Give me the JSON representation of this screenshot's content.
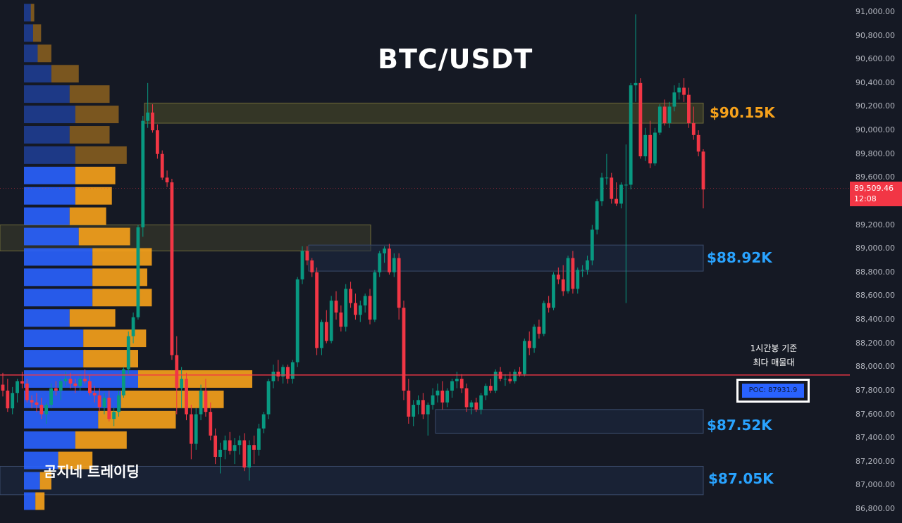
{
  "title": "BTC/USDT",
  "brand": "곰지네 트레이딩",
  "colors": {
    "bull": "#089981",
    "bear": "#f23645",
    "background": "#151924",
    "poc_line": "#f23645",
    "vp_buy": "#2962ff",
    "vp_sell": "#f7a21b"
  },
  "price_tag": {
    "price": "89,509.46",
    "countdown": "12:08"
  },
  "levels": [
    {
      "label": "$90.15K",
      "color": "#f7a21b"
    },
    {
      "label": "$88.92K",
      "color": "#29a3ff"
    },
    {
      "label": "$87.52K",
      "color": "#29a3ff"
    },
    {
      "label": "$87.05K",
      "color": "#29a3ff"
    }
  ],
  "poc": {
    "note_line1": "1시간봉 기준",
    "note_line2": "최다 매물대",
    "label": "POC: 87931.9"
  },
  "chart_data": {
    "type": "candlestick",
    "timeframe": "1h",
    "y_ticks": [
      "91,000.00",
      "90,800.00",
      "90,600.00",
      "90,400.00",
      "90,200.00",
      "90,000.00",
      "89,800.00",
      "89,600.00",
      "89,200.00",
      "89,000.00",
      "88,800.00",
      "88,600.00",
      "88,400.00",
      "88,200.00",
      "88,000.00",
      "87,800.00",
      "87,600.00",
      "87,400.00",
      "87,200.00",
      "87,000.00",
      "86,800.00"
    ],
    "ylim": [
      86750,
      91030
    ],
    "last_price": 89509.46,
    "poc": 87931.9,
    "key_levels": [
      90150,
      88920,
      87520,
      87050
    ],
    "zones": [
      {
        "top": 90230,
        "bottom": 90060,
        "type": "resistance"
      },
      {
        "top": 89200,
        "bottom": 88980,
        "type": "resistance"
      },
      {
        "top": 89030,
        "bottom": 88810,
        "type": "support"
      },
      {
        "top": 87640,
        "bottom": 87440,
        "type": "support"
      },
      {
        "top": 87160,
        "bottom": 86920,
        "type": "support"
      }
    ],
    "candles": [
      [
        87850,
        87950,
        87750,
        87800
      ],
      [
        87800,
        87900,
        87620,
        87650
      ],
      [
        87650,
        87830,
        87600,
        87780
      ],
      [
        87780,
        87900,
        87700,
        87880
      ],
      [
        87880,
        87960,
        87820,
        87860
      ],
      [
        87860,
        87900,
        87700,
        87720
      ],
      [
        87720,
        87760,
        87650,
        87700
      ],
      [
        87700,
        87780,
        87620,
        87680
      ],
      [
        87680,
        87740,
        87560,
        87600
      ],
      [
        87600,
        87700,
        87520,
        87680
      ],
      [
        87680,
        87860,
        87650,
        87820
      ],
      [
        87820,
        87880,
        87760,
        87800
      ],
      [
        87800,
        87900,
        87720,
        87880
      ],
      [
        87880,
        87960,
        87840,
        87900
      ],
      [
        87900,
        87950,
        87820,
        87860
      ],
      [
        87860,
        87900,
        87780,
        87840
      ],
      [
        87840,
        87930,
        87800,
        87900
      ],
      [
        87900,
        87980,
        87860,
        87880
      ],
      [
        87880,
        87930,
        87760,
        87780
      ],
      [
        87780,
        87840,
        87700,
        87760
      ],
      [
        87760,
        87820,
        87620,
        87660
      ],
      [
        87660,
        87780,
        87600,
        87740
      ],
      [
        87740,
        87800,
        87540,
        87560
      ],
      [
        87560,
        87660,
        87500,
        87620
      ],
      [
        87620,
        87800,
        87580,
        87760
      ],
      [
        87760,
        88000,
        87740,
        87980
      ],
      [
        87980,
        88300,
        87940,
        88260
      ],
      [
        88260,
        88460,
        88200,
        88420
      ],
      [
        88420,
        89200,
        88400,
        89180
      ],
      [
        89180,
        90120,
        89100,
        90080
      ],
      [
        90080,
        90400,
        90020,
        90150
      ],
      [
        90150,
        90220,
        89980,
        90000
      ],
      [
        90000,
        90050,
        89760,
        89800
      ],
      [
        89800,
        89830,
        89580,
        89600
      ],
      [
        89600,
        89660,
        89520,
        89560
      ],
      [
        89560,
        89590,
        88060,
        88100
      ],
      [
        88100,
        88260,
        87600,
        87820
      ],
      [
        87820,
        88000,
        87650,
        87900
      ],
      [
        87900,
        87950,
        87550,
        87600
      ],
      [
        87600,
        87680,
        87220,
        87350
      ],
      [
        87350,
        87650,
        87300,
        87600
      ],
      [
        87600,
        87850,
        87550,
        87800
      ],
      [
        87800,
        87900,
        87580,
        87620
      ],
      [
        87620,
        87700,
        87380,
        87420
      ],
      [
        87420,
        87480,
        87180,
        87240
      ],
      [
        87240,
        87360,
        87100,
        87300
      ],
      [
        87300,
        87420,
        87220,
        87380
      ],
      [
        87380,
        87450,
        87260,
        87290
      ],
      [
        87290,
        87400,
        87180,
        87340
      ],
      [
        87340,
        87420,
        87260,
        87380
      ],
      [
        87380,
        87440,
        87120,
        87150
      ],
      [
        87150,
        87380,
        87040,
        87340
      ],
      [
        87340,
        87420,
        87180,
        87300
      ],
      [
        87300,
        87520,
        87250,
        87480
      ],
      [
        87480,
        87620,
        87440,
        87600
      ],
      [
        87600,
        87900,
        87560,
        87880
      ],
      [
        87880,
        88020,
        87820,
        87960
      ],
      [
        87960,
        88060,
        87880,
        87920
      ],
      [
        87920,
        88020,
        87860,
        88000
      ],
      [
        88000,
        88020,
        87860,
        87900
      ],
      [
        87900,
        88060,
        87860,
        88040
      ],
      [
        88040,
        88760,
        88000,
        88740
      ],
      [
        88740,
        89020,
        88700,
        88980
      ],
      [
        88980,
        89020,
        88860,
        88900
      ],
      [
        88900,
        88920,
        88760,
        88800
      ],
      [
        88800,
        88840,
        88100,
        88160
      ],
      [
        88160,
        88400,
        88100,
        88380
      ],
      [
        88380,
        88480,
        88200,
        88220
      ],
      [
        88220,
        88600,
        88200,
        88560
      ],
      [
        88560,
        88640,
        88400,
        88460
      ],
      [
        88460,
        88520,
        88300,
        88340
      ],
      [
        88340,
        88700,
        88300,
        88660
      ],
      [
        88660,
        88720,
        88500,
        88540
      ],
      [
        88540,
        88620,
        88400,
        88440
      ],
      [
        88440,
        88560,
        88380,
        88520
      ],
      [
        88520,
        88620,
        88460,
        88600
      ],
      [
        88600,
        88660,
        88360,
        88400
      ],
      [
        88400,
        88820,
        88380,
        88800
      ],
      [
        88800,
        88980,
        88760,
        88960
      ],
      [
        88960,
        89020,
        88880,
        89000
      ],
      [
        89000,
        89040,
        88780,
        88800
      ],
      [
        88800,
        88960,
        88760,
        88920
      ],
      [
        88920,
        88960,
        88400,
        88500
      ],
      [
        88500,
        88560,
        87720,
        87800
      ],
      [
        87800,
        87900,
        87520,
        87580
      ],
      [
        87580,
        87720,
        87500,
        87680
      ],
      [
        87680,
        87760,
        87600,
        87720
      ],
      [
        87720,
        87780,
        87560,
        87600
      ],
      [
        87600,
        87700,
        87420,
        87680
      ],
      [
        87680,
        87820,
        87640,
        87760
      ],
      [
        87760,
        87860,
        87700,
        87800
      ],
      [
        87800,
        87880,
        87640,
        87700
      ],
      [
        87700,
        87820,
        87660,
        87800
      ],
      [
        87800,
        87900,
        87740,
        87880
      ],
      [
        87880,
        87960,
        87820,
        87900
      ],
      [
        87900,
        87940,
        87780,
        87820
      ],
      [
        87820,
        87860,
        87620,
        87660
      ],
      [
        87660,
        87720,
        87600,
        87700
      ],
      [
        87700,
        87740,
        87620,
        87640
      ],
      [
        87640,
        87780,
        87600,
        87760
      ],
      [
        87760,
        87860,
        87720,
        87840
      ],
      [
        87840,
        87900,
        87780,
        87800
      ],
      [
        87800,
        87980,
        87780,
        87960
      ],
      [
        87960,
        88000,
        87880,
        87900
      ],
      [
        87900,
        87940,
        87840,
        87900
      ],
      [
        87900,
        87960,
        87860,
        87880
      ],
      [
        87880,
        87980,
        87860,
        87960
      ],
      [
        87960,
        88000,
        87920,
        87940
      ],
      [
        87940,
        88240,
        87920,
        88220
      ],
      [
        88220,
        88300,
        88100,
        88160
      ],
      [
        88160,
        88360,
        88120,
        88340
      ],
      [
        88340,
        88400,
        88240,
        88280
      ],
      [
        88280,
        88560,
        88260,
        88540
      ],
      [
        88540,
        88600,
        88460,
        88500
      ],
      [
        88500,
        88800,
        88480,
        88780
      ],
      [
        88780,
        88840,
        88700,
        88740
      ],
      [
        88740,
        88860,
        88600,
        88640
      ],
      [
        88640,
        88940,
        88620,
        88920
      ],
      [
        88920,
        88980,
        88620,
        88660
      ],
      [
        88660,
        88840,
        88620,
        88820
      ],
      [
        88820,
        88860,
        88760,
        88820
      ],
      [
        88820,
        88940,
        88780,
        88900
      ],
      [
        88900,
        89200,
        88860,
        89160
      ],
      [
        89160,
        89420,
        89120,
        89400
      ],
      [
        89400,
        89640,
        89360,
        89600
      ],
      [
        89600,
        89800,
        89540,
        89600
      ],
      [
        89600,
        89640,
        89380,
        89420
      ],
      [
        89420,
        89560,
        89360,
        89380
      ],
      [
        89380,
        89560,
        89340,
        89540
      ],
      [
        89540,
        89880,
        88540,
        89540
      ],
      [
        89540,
        90400,
        89500,
        90380
      ],
      [
        90380,
        90980,
        90240,
        90400
      ],
      [
        90400,
        90440,
        89760,
        89780
      ],
      [
        89780,
        90020,
        89740,
        89960
      ],
      [
        89960,
        90080,
        89680,
        89720
      ],
      [
        89720,
        90020,
        89700,
        89980
      ],
      [
        89980,
        90220,
        89960,
        90200
      ],
      [
        90200,
        90260,
        90040,
        90060
      ],
      [
        90060,
        90240,
        90020,
        90200
      ],
      [
        90200,
        90380,
        90160,
        90320
      ],
      [
        90320,
        90400,
        90260,
        90360
      ],
      [
        90360,
        90440,
        90240,
        90300
      ],
      [
        90300,
        90360,
        90020,
        90060
      ],
      [
        90060,
        90200,
        89920,
        89960
      ],
      [
        89960,
        90000,
        89780,
        89820
      ],
      [
        89820,
        89840,
        89340,
        89500
      ]
    ],
    "volume_profile": [
      {
        "price": 90980,
        "buy": 6,
        "sell": 3
      },
      {
        "price": 90800,
        "buy": 8,
        "sell": 7
      },
      {
        "price": 90620,
        "buy": 12,
        "sell": 12
      },
      {
        "price": 90440,
        "buy": 24,
        "sell": 24
      },
      {
        "price": 90270,
        "buy": 40,
        "sell": 35
      },
      {
        "price": 90100,
        "buy": 45,
        "sell": 38
      },
      {
        "price": 89930,
        "buy": 40,
        "sell": 35
      },
      {
        "price": 89760,
        "buy": 45,
        "sell": 45
      },
      {
        "price": 89590,
        "buy": 45,
        "sell": 35
      },
      {
        "price": 89420,
        "buy": 45,
        "sell": 32
      },
      {
        "price": 89250,
        "buy": 40,
        "sell": 32
      },
      {
        "price": 89080,
        "buy": 48,
        "sell": 45
      },
      {
        "price": 88910,
        "buy": 60,
        "sell": 52
      },
      {
        "price": 88740,
        "buy": 60,
        "sell": 48
      },
      {
        "price": 88570,
        "buy": 60,
        "sell": 52
      },
      {
        "price": 88400,
        "buy": 40,
        "sell": 40
      },
      {
        "price": 88230,
        "buy": 52,
        "sell": 55
      },
      {
        "price": 88060,
        "buy": 52,
        "sell": 48
      },
      {
        "price": 87890,
        "buy": 100,
        "sell": 100
      },
      {
        "price": 87720,
        "buy": 85,
        "sell": 90
      },
      {
        "price": 87550,
        "buy": 65,
        "sell": 68
      },
      {
        "price": 87380,
        "buy": 45,
        "sell": 45
      },
      {
        "price": 87210,
        "buy": 30,
        "sell": 30
      },
      {
        "price": 87040,
        "buy": 14,
        "sell": 10
      },
      {
        "price": 86870,
        "buy": 10,
        "sell": 8
      }
    ]
  }
}
